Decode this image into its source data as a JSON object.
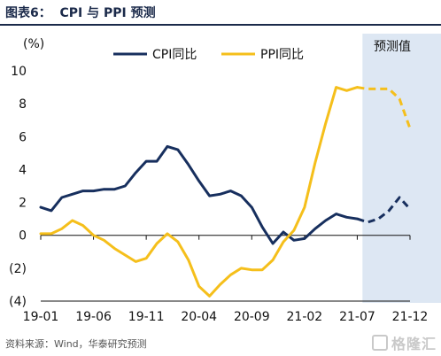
{
  "header": {
    "title": "图表6：  CPI 与 PPI 预测"
  },
  "footer": {
    "source": "资料来源：Wind，华泰研究预测",
    "watermark": "格隆汇"
  },
  "chart_data": {
    "type": "line",
    "title": "CPI 与 PPI 预测",
    "unit_label": "(%)",
    "forecast_label": "预测值",
    "forecast_start": "2021-08",
    "forecast_color": "#dde7f3",
    "x_range": [
      "2019-01",
      "2021-12"
    ],
    "ylim": [
      -4,
      10
    ],
    "y_ticks": [
      10,
      8,
      6,
      4,
      2,
      0,
      -2,
      -4
    ],
    "y_tick_labels": [
      "10",
      "8",
      "6",
      "4",
      "2",
      "0",
      "(2)",
      "(4)"
    ],
    "x_ticks": [
      "2019-01",
      "2019-06",
      "2019-11",
      "2020-04",
      "2020-09",
      "2021-02",
      "2021-07",
      "2021-12"
    ],
    "x_tick_labels": [
      "19-01",
      "19-06",
      "19-11",
      "20-04",
      "20-09",
      "21-02",
      "21-07",
      "21-12"
    ],
    "grid": false,
    "legend_position": "top",
    "series": [
      {
        "name": "CPI同比",
        "color": "#172f5e",
        "points": [
          [
            "2019-01",
            1.7
          ],
          [
            "2019-02",
            1.5
          ],
          [
            "2019-03",
            2.3
          ],
          [
            "2019-04",
            2.5
          ],
          [
            "2019-05",
            2.7
          ],
          [
            "2019-06",
            2.7
          ],
          [
            "2019-07",
            2.8
          ],
          [
            "2019-08",
            2.8
          ],
          [
            "2019-09",
            3.0
          ],
          [
            "2019-10",
            3.8
          ],
          [
            "2019-11",
            4.5
          ],
          [
            "2019-12",
            4.5
          ],
          [
            "2020-01",
            5.4
          ],
          [
            "2020-02",
            5.2
          ],
          [
            "2020-03",
            4.3
          ],
          [
            "2020-04",
            3.3
          ],
          [
            "2020-05",
            2.4
          ],
          [
            "2020-06",
            2.5
          ],
          [
            "2020-07",
            2.7
          ],
          [
            "2020-08",
            2.4
          ],
          [
            "2020-09",
            1.7
          ],
          [
            "2020-10",
            0.5
          ],
          [
            "2020-11",
            -0.5
          ],
          [
            "2020-12",
            0.2
          ],
          [
            "2021-01",
            -0.3
          ],
          [
            "2021-02",
            -0.2
          ],
          [
            "2021-03",
            0.4
          ],
          [
            "2021-04",
            0.9
          ],
          [
            "2021-05",
            1.3
          ],
          [
            "2021-06",
            1.1
          ],
          [
            "2021-07",
            1.0
          ]
        ],
        "forecast": [
          [
            "2021-07",
            1.0
          ],
          [
            "2021-08",
            0.8
          ],
          [
            "2021-09",
            1.0
          ],
          [
            "2021-10",
            1.5
          ],
          [
            "2021-11",
            2.3
          ],
          [
            "2021-12",
            1.6
          ]
        ]
      },
      {
        "name": "PPI同比",
        "color": "#f5bf1b",
        "points": [
          [
            "2019-01",
            0.1
          ],
          [
            "2019-02",
            0.1
          ],
          [
            "2019-03",
            0.4
          ],
          [
            "2019-04",
            0.9
          ],
          [
            "2019-05",
            0.6
          ],
          [
            "2019-06",
            0.0
          ],
          [
            "2019-07",
            -0.3
          ],
          [
            "2019-08",
            -0.8
          ],
          [
            "2019-09",
            -1.2
          ],
          [
            "2019-10",
            -1.6
          ],
          [
            "2019-11",
            -1.4
          ],
          [
            "2019-12",
            -0.5
          ],
          [
            "2020-01",
            0.1
          ],
          [
            "2020-02",
            -0.4
          ],
          [
            "2020-03",
            -1.5
          ],
          [
            "2020-04",
            -3.1
          ],
          [
            "2020-05",
            -3.7
          ],
          [
            "2020-06",
            -3.0
          ],
          [
            "2020-07",
            -2.4
          ],
          [
            "2020-08",
            -2.0
          ],
          [
            "2020-09",
            -2.1
          ],
          [
            "2020-10",
            -2.1
          ],
          [
            "2020-11",
            -1.5
          ],
          [
            "2020-12",
            -0.4
          ],
          [
            "2021-01",
            0.3
          ],
          [
            "2021-02",
            1.7
          ],
          [
            "2021-03",
            4.4
          ],
          [
            "2021-04",
            6.8
          ],
          [
            "2021-05",
            9.0
          ],
          [
            "2021-06",
            8.8
          ],
          [
            "2021-07",
            9.0
          ]
        ],
        "forecast": [
          [
            "2021-07",
            9.0
          ],
          [
            "2021-08",
            8.9
          ],
          [
            "2021-09",
            8.9
          ],
          [
            "2021-10",
            8.9
          ],
          [
            "2021-11",
            8.3
          ],
          [
            "2021-12",
            6.5
          ]
        ]
      }
    ]
  }
}
